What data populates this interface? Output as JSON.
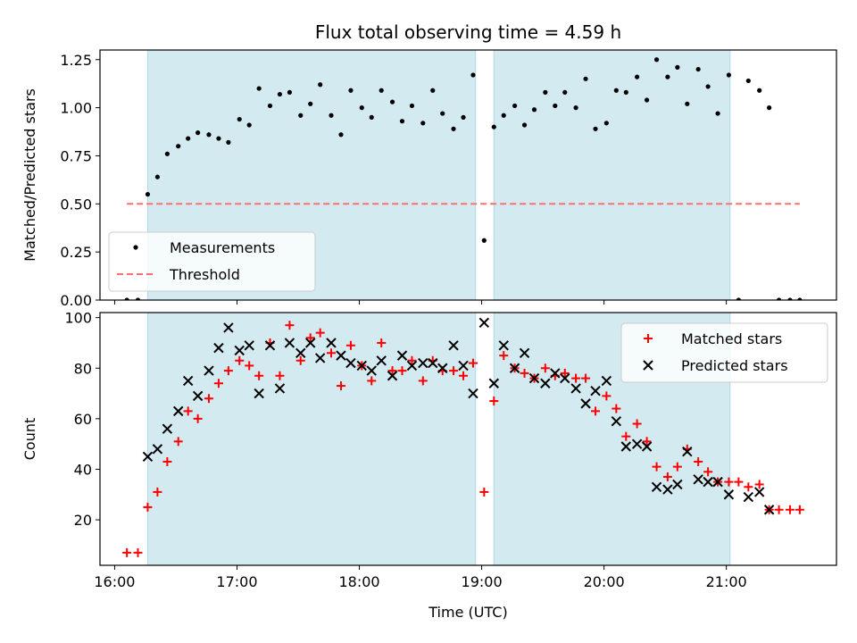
{
  "chart_data": [
    {
      "type": "scatter",
      "title": "Flux total observing time = 4.59 h",
      "xlabel": "",
      "ylabel": "Matched/Predicted stars",
      "xlim": [
        15.88,
        21.9
      ],
      "ylim": [
        0,
        1.3
      ],
      "xticks": [
        16,
        17,
        18,
        19,
        20,
        21
      ],
      "yticks": [
        0,
        0.25,
        0.5,
        0.75,
        1.0,
        1.25
      ],
      "ytick_labels": [
        "0.00",
        "0.25",
        "0.50",
        "0.75",
        "1.00",
        "1.25"
      ],
      "shaded_spans": [
        [
          16.27,
          18.95
        ],
        [
          19.1,
          21.03
        ]
      ],
      "shade_color": "#d3eaf0",
      "legend": {
        "position": "lower-left",
        "entries": [
          "Measurements",
          "Threshold"
        ]
      },
      "series": [
        {
          "name": "Measurements",
          "marker": "dot",
          "color": "#000000",
          "x": [
            16.1,
            16.19,
            16.27,
            16.35,
            16.43,
            16.52,
            16.6,
            16.68,
            16.77,
            16.85,
            16.93,
            17.02,
            17.1,
            17.18,
            17.27,
            17.35,
            17.43,
            17.52,
            17.6,
            17.68,
            17.77,
            17.85,
            17.93,
            18.02,
            18.1,
            18.18,
            18.27,
            18.35,
            18.43,
            18.52,
            18.6,
            18.68,
            18.77,
            18.85,
            18.93,
            19.02,
            19.1,
            19.18,
            19.27,
            19.35,
            19.43,
            19.52,
            19.6,
            19.68,
            19.77,
            19.85,
            19.93,
            20.02,
            20.1,
            20.18,
            20.27,
            20.35,
            20.43,
            20.52,
            20.6,
            20.68,
            20.77,
            20.85,
            20.93,
            21.02,
            21.1,
            21.18,
            21.27,
            21.35,
            21.43,
            21.52,
            21.6
          ],
          "y": [
            0,
            0,
            0.55,
            0.64,
            0.76,
            0.8,
            0.84,
            0.87,
            0.86,
            0.84,
            0.82,
            0.94,
            0.91,
            1.1,
            1.01,
            1.07,
            1.08,
            0.96,
            1.02,
            1.12,
            0.96,
            0.86,
            1.09,
            1.0,
            0.95,
            1.09,
            1.03,
            0.93,
            1.01,
            0.92,
            1.09,
            0.97,
            0.89,
            0.95,
            1.17,
            0.31,
            0.9,
            0.96,
            1.01,
            0.91,
            0.99,
            1.08,
            1.01,
            1.08,
            1.0,
            1.15,
            0.89,
            0.92,
            1.09,
            1.08,
            1.16,
            1.04,
            1.25,
            1.16,
            1.21,
            1.02,
            1.2,
            1.11,
            0.97,
            1.17,
            0,
            1.14,
            1.09,
            1.0,
            0,
            0,
            0
          ]
        },
        {
          "name": "Threshold",
          "style": "dashed",
          "color": "#ff6f6f",
          "x": [
            16.1,
            21.6
          ],
          "y": [
            0.5,
            0.5
          ]
        }
      ]
    },
    {
      "type": "scatter",
      "title": "",
      "xlabel": "Time (UTC)",
      "ylabel": "Count",
      "xlim": [
        15.88,
        21.9
      ],
      "ylim": [
        2,
        102
      ],
      "xticks": [
        16,
        17,
        18,
        19,
        20,
        21
      ],
      "xtick_labels": [
        "16:00",
        "17:00",
        "18:00",
        "19:00",
        "20:00",
        "21:00"
      ],
      "yticks": [
        20,
        40,
        60,
        80,
        100
      ],
      "shaded_spans": [
        [
          16.27,
          18.95
        ],
        [
          19.1,
          21.03
        ]
      ],
      "legend": {
        "position": "top-right",
        "entries": [
          "Matched stars",
          "Predicted stars"
        ]
      },
      "series": [
        {
          "name": "Matched stars",
          "marker": "plus",
          "color": "#ff0000",
          "x": [
            16.1,
            16.19,
            16.27,
            16.35,
            16.43,
            16.52,
            16.6,
            16.68,
            16.77,
            16.85,
            16.93,
            17.02,
            17.1,
            17.18,
            17.27,
            17.35,
            17.43,
            17.52,
            17.6,
            17.68,
            17.77,
            17.85,
            17.93,
            18.02,
            18.1,
            18.18,
            18.27,
            18.35,
            18.43,
            18.52,
            18.6,
            18.68,
            18.77,
            18.85,
            18.93,
            19.02,
            19.1,
            19.18,
            19.27,
            19.35,
            19.43,
            19.52,
            19.6,
            19.68,
            19.77,
            19.85,
            19.93,
            20.02,
            20.1,
            20.18,
            20.27,
            20.35,
            20.43,
            20.52,
            20.6,
            20.68,
            20.77,
            20.85,
            20.93,
            21.02,
            21.1,
            21.18,
            21.27,
            21.35,
            21.43,
            21.52,
            21.6
          ],
          "y": [
            7,
            7,
            25,
            31,
            43,
            51,
            63,
            60,
            68,
            74,
            79,
            83,
            81,
            77,
            90,
            77,
            97,
            83,
            92,
            94,
            86,
            73,
            89,
            81,
            75,
            90,
            79,
            79,
            83,
            75,
            83,
            79,
            79,
            77,
            82,
            31,
            67,
            85,
            80,
            78,
            76,
            80,
            77,
            78,
            76,
            76,
            63,
            69,
            64,
            53,
            58,
            51,
            41,
            37,
            41,
            48,
            43,
            39,
            35,
            35,
            35,
            33,
            34,
            24,
            24,
            24,
            24
          ]
        },
        {
          "name": "Predicted stars",
          "marker": "x",
          "color": "#000000",
          "x": [
            16.27,
            16.35,
            16.43,
            16.52,
            16.6,
            16.68,
            16.77,
            16.85,
            16.93,
            17.02,
            17.1,
            17.18,
            17.27,
            17.35,
            17.43,
            17.52,
            17.6,
            17.68,
            17.77,
            17.85,
            17.93,
            18.02,
            18.1,
            18.18,
            18.27,
            18.35,
            18.43,
            18.52,
            18.6,
            18.68,
            18.77,
            18.85,
            18.93,
            19.02,
            19.1,
            19.18,
            19.27,
            19.35,
            19.43,
            19.52,
            19.6,
            19.68,
            19.77,
            19.85,
            19.93,
            20.02,
            20.1,
            20.18,
            20.27,
            20.35,
            20.43,
            20.52,
            20.6,
            20.68,
            20.77,
            20.85,
            20.93,
            21.02,
            21.18,
            21.27,
            21.35
          ],
          "y": [
            45,
            48,
            56,
            63,
            75,
            69,
            79,
            88,
            96,
            87,
            89,
            70,
            89,
            72,
            90,
            86,
            90,
            84,
            90,
            85,
            82,
            81,
            79,
            83,
            77,
            85,
            81,
            82,
            82,
            80,
            89,
            81,
            70,
            98,
            74,
            89,
            80,
            86,
            76,
            74,
            78,
            76,
            72,
            66,
            71,
            75,
            59,
            49,
            50,
            49,
            33,
            32,
            34,
            47,
            36,
            35,
            35,
            30,
            29,
            31,
            24
          ]
        }
      ]
    }
  ]
}
